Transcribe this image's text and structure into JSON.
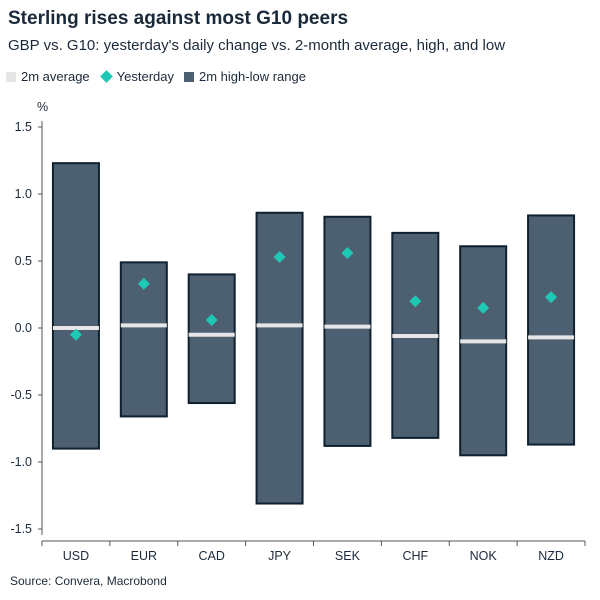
{
  "header": {
    "title": "Sterling rises against most G10 peers",
    "subtitle": "GBP vs. G10: yesterday's daily change vs. 2-month average, high, and low"
  },
  "legend": {
    "avg_label": "2m average",
    "yesterday_label": "Yesterday",
    "range_label": "2m high-low range"
  },
  "colors": {
    "range_fill": "#4d6072",
    "range_stroke": "#0f2030",
    "average": "#e6e6e6",
    "yesterday": "#1ec8b4",
    "axis": "#555555"
  },
  "source": "Source: Convera, Macrobond",
  "chart_data": {
    "type": "bar",
    "ylabel": "%",
    "ylim": [
      -1.5,
      1.5
    ],
    "yticks": [
      "1.5",
      "1.0",
      "0.5",
      "0.0",
      "-0.5",
      "-1.0",
      "-1.5"
    ],
    "ytick_values": [
      1.5,
      1.0,
      0.5,
      0.0,
      -0.5,
      -1.0,
      -1.5
    ],
    "grid": false,
    "legend_position": "top-left",
    "categories": [
      "USD",
      "EUR",
      "CAD",
      "JPY",
      "SEK",
      "CHF",
      "NOK",
      "NZD"
    ],
    "series": [
      {
        "name": "2m high-low range",
        "low": [
          -0.9,
          -0.66,
          -0.56,
          -1.31,
          -0.88,
          -0.82,
          -0.95,
          -0.87
        ],
        "high": [
          1.23,
          0.49,
          0.4,
          0.86,
          0.83,
          0.71,
          0.61,
          0.84
        ]
      },
      {
        "name": "2m average",
        "values": [
          0.0,
          0.02,
          -0.05,
          0.02,
          0.01,
          -0.06,
          -0.1,
          -0.07
        ]
      },
      {
        "name": "Yesterday",
        "values": [
          -0.05,
          0.33,
          0.06,
          0.53,
          0.56,
          0.2,
          0.15,
          0.23
        ]
      }
    ]
  }
}
